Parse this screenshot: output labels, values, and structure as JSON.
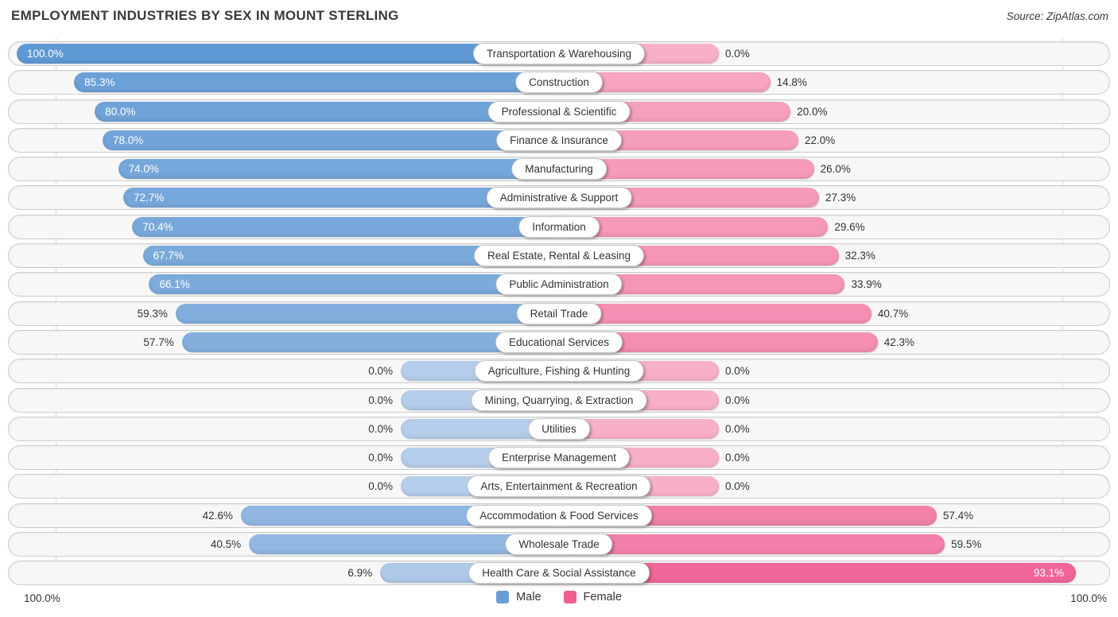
{
  "page": {
    "source": "Source: ZipAtlas.com"
  },
  "chart_data": {
    "type": "bar",
    "variant": "diverging-horizontal-pyramid",
    "title": "EMPLOYMENT INDUSTRIES BY SEX IN MOUNT STERLING",
    "value_suffix": "%",
    "categories": [
      "Transportation & Warehousing",
      "Construction",
      "Professional & Scientific",
      "Finance & Insurance",
      "Manufacturing",
      "Administrative & Support",
      "Information",
      "Real Estate, Rental & Leasing",
      "Public Administration",
      "Retail Trade",
      "Educational Services",
      "Agriculture, Fishing & Hunting",
      "Mining, Quarrying, & Extraction",
      "Utilities",
      "Enterprise Management",
      "Arts, Entertainment & Recreation",
      "Accommodation & Food Services",
      "Wholesale Trade",
      "Health Care & Social Assistance"
    ],
    "series": [
      {
        "name": "Male",
        "values": [
          100.0,
          85.3,
          80.0,
          78.0,
          74.0,
          72.7,
          70.4,
          67.7,
          66.1,
          59.3,
          57.7,
          0.0,
          0.0,
          0.0,
          0.0,
          0.0,
          42.6,
          40.5,
          6.9
        ]
      },
      {
        "name": "Female",
        "values": [
          0.0,
          14.8,
          20.0,
          22.0,
          26.0,
          27.3,
          29.6,
          32.3,
          33.9,
          40.7,
          42.3,
          0.0,
          0.0,
          0.0,
          0.0,
          0.0,
          57.4,
          59.5,
          93.1
        ]
      }
    ],
    "axis": {
      "xlim": [
        0,
        100
      ],
      "left_max_label": "100.0%",
      "right_max_label": "100.0%",
      "grid": "edge-lines-only"
    },
    "legend": {
      "position": "bottom-center",
      "entries": [
        {
          "label": "Male",
          "color": "#6c9dd2"
        },
        {
          "label": "Female",
          "color": "#ee5f8f"
        }
      ]
    }
  },
  "colors": {
    "male_min": "#b4cdea",
    "male_max": "#5f99d4",
    "female_min": "#f8b0c8",
    "female_max": "#f05f96",
    "row_bg": "#f7f7f7",
    "row_border": "#cbcbcb",
    "axis_line": "#d9d9d9",
    "label_text": "#333333",
    "inside_value_text": "#ffffff"
  }
}
